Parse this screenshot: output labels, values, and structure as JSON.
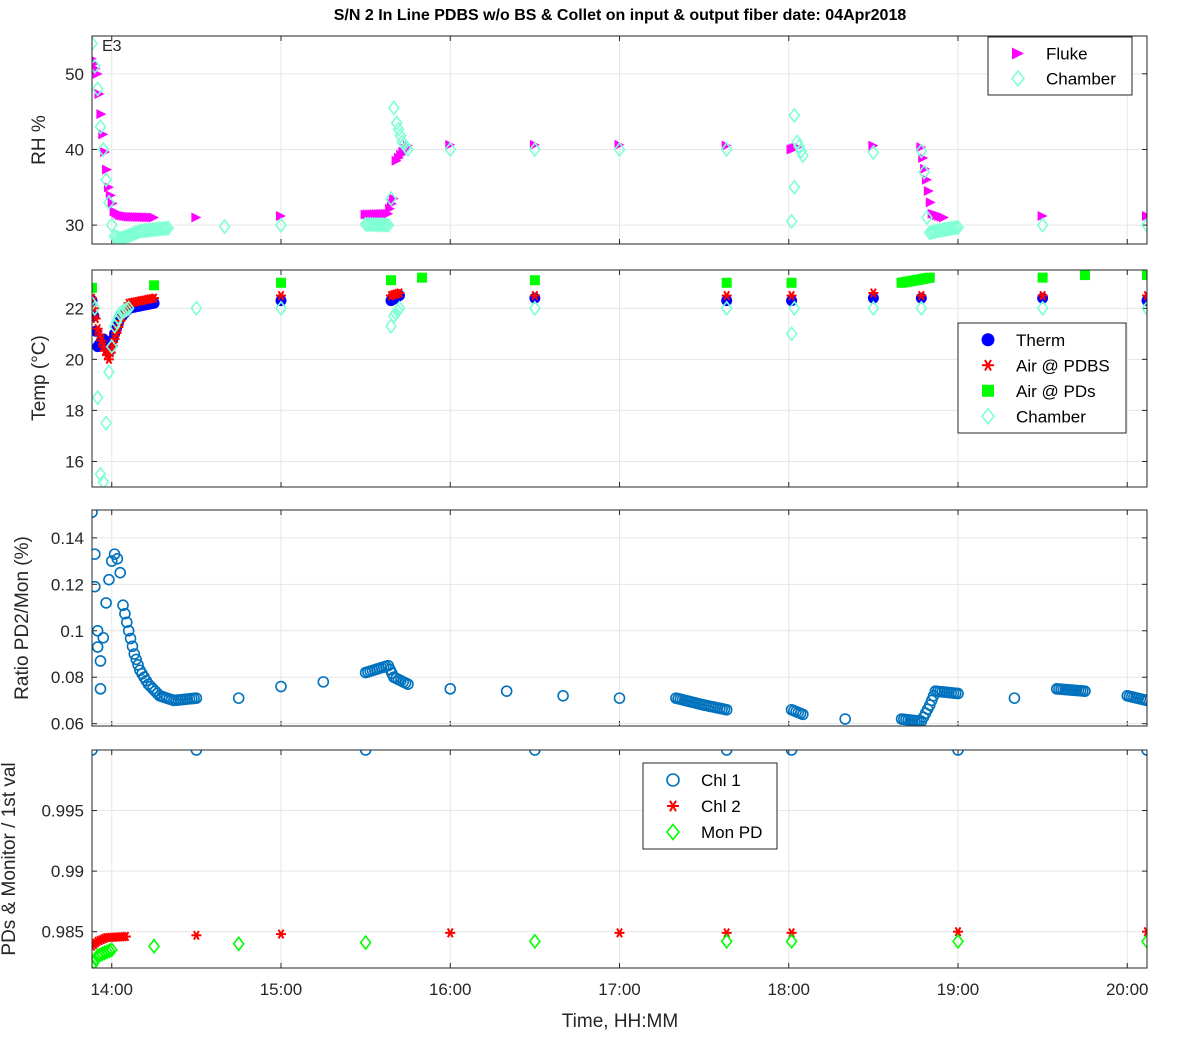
{
  "figure": {
    "title": "S/N 2 In Line PDBS w/o BS & Collet on input & output fiber date: 04Apr2018",
    "xlabel": "Time, HH:MM",
    "x_ticks": [
      "14:00",
      "15:00",
      "16:00",
      "17:00",
      "18:00",
      "19:00",
      "20:00"
    ],
    "colors": {
      "fluke": "#ff00ff",
      "chamber": "#7fffd4",
      "therm": "#0000ff",
      "air_pdbs": "#ff0000",
      "air_pds": "#00ff00",
      "ratio": "#0072bd",
      "chl1": "#0072bd",
      "chl2": "#ff0000",
      "mon_pd": "#00ff00"
    }
  },
  "chart_data": [
    {
      "type": "scatter",
      "ylabel": "RH %",
      "annotation": "E3",
      "xlim": [
        "13:53",
        "20:07"
      ],
      "ylim": [
        27.5,
        55
      ],
      "yticks": [
        "30",
        "40",
        "50"
      ],
      "grid": true,
      "legend_position": "top-right",
      "series": [
        {
          "name": "Fluke",
          "marker": "triangle-right",
          "color": "#ff00ff",
          "points": [
            [
              "13:53",
              52
            ],
            [
              "13:55",
              50
            ],
            [
              "13:57",
              42
            ],
            [
              "13:59",
              35
            ],
            [
              "14:01",
              31.8
            ],
            [
              "14:03",
              31.3
            ],
            [
              "14:06",
              31.1
            ],
            [
              "14:15",
              31.0
            ],
            [
              "14:30",
              31.0
            ],
            [
              "15:00",
              31.2
            ],
            [
              "15:30",
              31.4
            ],
            [
              "15:38",
              31.5
            ],
            [
              "15:40",
              33.5
            ],
            [
              "15:41",
              38.5
            ],
            [
              "15:45",
              40.5
            ],
            [
              "16:00",
              40.6
            ],
            [
              "16:30",
              40.6
            ],
            [
              "17:00",
              40.6
            ],
            [
              "17:38",
              40.5
            ],
            [
              "18:01",
              40.0
            ],
            [
              "18:03",
              40.3
            ],
            [
              "18:30",
              40.5
            ],
            [
              "18:47",
              40.3
            ],
            [
              "18:49",
              36.0
            ],
            [
              "18:51",
              31.5
            ],
            [
              "18:55",
              31.0
            ],
            [
              "19:30",
              31.2
            ],
            [
              "20:07",
              31.2
            ]
          ]
        },
        {
          "name": "Chamber",
          "marker": "diamond-open",
          "color": "#7fffd4",
          "points": [
            [
              "13:53",
              54
            ],
            [
              "13:54",
              51
            ],
            [
              "13:55",
              48
            ],
            [
              "13:56",
              43
            ],
            [
              "13:57",
              40
            ],
            [
              "13:58",
              36
            ],
            [
              "13:59",
              33
            ],
            [
              "14:00",
              30
            ],
            [
              "14:01",
              28.5
            ],
            [
              "14:03",
              28.2
            ],
            [
              "14:06",
              28.6
            ],
            [
              "14:10",
              29.2
            ],
            [
              "14:20",
              29.6
            ],
            [
              "14:40",
              29.8
            ],
            [
              "15:00",
              30.0
            ],
            [
              "15:30",
              30.1
            ],
            [
              "15:38",
              30.0
            ],
            [
              "15:39",
              33.5
            ],
            [
              "15:40",
              45.5
            ],
            [
              "15:41",
              43.5
            ],
            [
              "15:43",
              41.0
            ],
            [
              "15:45",
              40.0
            ],
            [
              "16:00",
              40.0
            ],
            [
              "16:30",
              40.0
            ],
            [
              "17:00",
              40.0
            ],
            [
              "17:38",
              40.0
            ],
            [
              "18:01",
              30.5
            ],
            [
              "18:02",
              35.0
            ],
            [
              "18:02",
              44.5
            ],
            [
              "18:03",
              41.0
            ],
            [
              "18:05",
              39.2
            ],
            [
              "18:30",
              39.6
            ],
            [
              "18:47",
              39.8
            ],
            [
              "18:48",
              37.0
            ],
            [
              "18:49",
              31.0
            ],
            [
              "18:50",
              29.0
            ],
            [
              "18:52",
              29.2
            ],
            [
              "19:00",
              29.7
            ],
            [
              "19:30",
              30.0
            ],
            [
              "20:07",
              30.0
            ]
          ]
        }
      ]
    },
    {
      "type": "scatter",
      "ylabel": "Temp (°C)",
      "xlim": [
        "13:53",
        "20:07"
      ],
      "ylim": [
        15,
        23.5
      ],
      "yticks": [
        "16",
        "18",
        "20",
        "22"
      ],
      "grid": true,
      "legend_position": "right",
      "series": [
        {
          "name": "Therm",
          "marker": "circle-filled",
          "color": "#0000ff",
          "points": [
            [
              "13:53",
              22.3
            ],
            [
              "13:55",
              20.5
            ],
            [
              "13:57",
              20.8
            ],
            [
              "13:59",
              20.3
            ],
            [
              "14:01",
              21.0
            ],
            [
              "14:03",
              21.6
            ],
            [
              "14:06",
              22.0
            ],
            [
              "14:15",
              22.2
            ],
            [
              "15:00",
              22.3
            ],
            [
              "15:39",
              22.3
            ],
            [
              "15:42",
              22.5
            ],
            [
              "16:30",
              22.4
            ],
            [
              "17:38",
              22.3
            ],
            [
              "18:01",
              22.3
            ],
            [
              "18:30",
              22.4
            ],
            [
              "18:47",
              22.4
            ],
            [
              "19:30",
              22.4
            ],
            [
              "20:07",
              22.3
            ]
          ]
        },
        {
          "name": "Air @ PDBS",
          "marker": "asterisk",
          "color": "#ff0000",
          "points": [
            [
              "13:53",
              22.4
            ],
            [
              "13:55",
              21.2
            ],
            [
              "13:57",
              20.5
            ],
            [
              "13:59",
              20.0
            ],
            [
              "14:01",
              20.8
            ],
            [
              "14:03",
              21.5
            ],
            [
              "14:06",
              22.2
            ],
            [
              "14:15",
              22.4
            ],
            [
              "15:00",
              22.5
            ],
            [
              "15:39",
              22.5
            ],
            [
              "15:42",
              22.6
            ],
            [
              "16:30",
              22.5
            ],
            [
              "17:38",
              22.5
            ],
            [
              "18:01",
              22.5
            ],
            [
              "18:30",
              22.6
            ],
            [
              "18:47",
              22.5
            ],
            [
              "19:30",
              22.5
            ],
            [
              "20:07",
              22.5
            ]
          ]
        },
        {
          "name": "Air @ PDs",
          "marker": "square-filled",
          "color": "#00ff00",
          "points": [
            [
              "13:53",
              22.8
            ],
            [
              "14:15",
              22.9
            ],
            [
              "15:00",
              23.0
            ],
            [
              "15:39",
              23.1
            ],
            [
              "15:50",
              23.2
            ],
            [
              "16:30",
              23.1
            ],
            [
              "17:38",
              23.0
            ],
            [
              "18:01",
              23.0
            ],
            [
              "18:40",
              23.0
            ],
            [
              "18:50",
              23.2
            ],
            [
              "19:30",
              23.2
            ],
            [
              "19:45",
              23.3
            ],
            [
              "20:07",
              23.3
            ]
          ]
        },
        {
          "name": "Chamber",
          "marker": "diamond-open",
          "color": "#7fffd4",
          "points": [
            [
              "13:53",
              22.2
            ],
            [
              "13:54",
              22.0
            ],
            [
              "13:55",
              18.5
            ],
            [
              "13:56",
              15.5
            ],
            [
              "13:57",
              15.2
            ],
            [
              "13:58",
              17.5
            ],
            [
              "13:59",
              19.5
            ],
            [
              "14:00",
              20.5
            ],
            [
              "14:01",
              21.3
            ],
            [
              "14:03",
              21.8
            ],
            [
              "14:06",
              22.0
            ],
            [
              "14:30",
              22.0
            ],
            [
              "15:00",
              22.0
            ],
            [
              "15:39",
              21.3
            ],
            [
              "15:40",
              21.7
            ],
            [
              "15:42",
              22.0
            ],
            [
              "16:30",
              22.0
            ],
            [
              "17:38",
              22.0
            ],
            [
              "18:01",
              21.0
            ],
            [
              "18:02",
              22.0
            ],
            [
              "18:30",
              22.0
            ],
            [
              "18:47",
              22.0
            ],
            [
              "19:30",
              22.0
            ],
            [
              "20:07",
              22.0
            ]
          ]
        }
      ]
    },
    {
      "type": "scatter",
      "ylabel": "Ratio PD2/Mon (%)",
      "xlim": [
        "13:53",
        "20:07"
      ],
      "ylim": [
        0.059,
        0.152
      ],
      "yticks": [
        "0.06",
        "0.08",
        "0.1",
        "0.12",
        "0.14"
      ],
      "grid": true,
      "series": [
        {
          "name": "",
          "marker": "circle-open",
          "color": "#0072bd",
          "points": [
            [
              "13:53",
              0.151
            ],
            [
              "13:54",
              0.133
            ],
            [
              "13:54",
              0.119
            ],
            [
              "13:55",
              0.1
            ],
            [
              "13:55",
              0.093
            ],
            [
              "13:56",
              0.087
            ],
            [
              "13:56",
              0.075
            ],
            [
              "13:57",
              0.097
            ],
            [
              "13:58",
              0.112
            ],
            [
              "13:59",
              0.122
            ],
            [
              "14:00",
              0.13
            ],
            [
              "14:01",
              0.133
            ],
            [
              "14:02",
              0.131
            ],
            [
              "14:03",
              0.125
            ],
            [
              "14:04",
              0.111
            ],
            [
              "14:06",
              0.1
            ],
            [
              "14:08",
              0.09
            ],
            [
              "14:10",
              0.083
            ],
            [
              "14:13",
              0.077
            ],
            [
              "14:17",
              0.072
            ],
            [
              "14:22",
              0.07
            ],
            [
              "14:30",
              0.071
            ],
            [
              "14:45",
              0.071
            ],
            [
              "15:00",
              0.076
            ],
            [
              "15:15",
              0.078
            ],
            [
              "15:30",
              0.082
            ],
            [
              "15:38",
              0.085
            ],
            [
              "15:40",
              0.08
            ],
            [
              "15:45",
              0.077
            ],
            [
              "16:00",
              0.075
            ],
            [
              "16:20",
              0.074
            ],
            [
              "16:40",
              0.072
            ],
            [
              "17:00",
              0.071
            ],
            [
              "17:20",
              0.071
            ],
            [
              "17:30",
              0.068
            ],
            [
              "17:38",
              0.066
            ],
            [
              "18:01",
              0.066
            ],
            [
              "18:05",
              0.064
            ],
            [
              "18:20",
              0.062
            ],
            [
              "18:40",
              0.062
            ],
            [
              "18:47",
              0.061
            ],
            [
              "18:50",
              0.068
            ],
            [
              "18:52",
              0.074
            ],
            [
              "19:00",
              0.073
            ],
            [
              "19:20",
              0.071
            ],
            [
              "19:35",
              0.075
            ],
            [
              "19:45",
              0.074
            ],
            [
              "20:00",
              0.072
            ],
            [
              "20:07",
              0.07
            ]
          ]
        }
      ]
    },
    {
      "type": "scatter",
      "ylabel": "PDs & Monitor / 1st val",
      "xlim": [
        "13:53",
        "20:07"
      ],
      "ylim": [
        0.982,
        1.0
      ],
      "yticks": [
        "0.985",
        "0.99",
        "0.995"
      ],
      "grid": true,
      "legend_position": "top-center",
      "series": [
        {
          "name": "Chl 1",
          "marker": "circle-open",
          "color": "#0072bd",
          "points": [
            [
              "13:53",
              1.0
            ],
            [
              "14:30",
              1.0
            ],
            [
              "15:30",
              1.0
            ],
            [
              "16:30",
              1.0
            ],
            [
              "17:38",
              1.0
            ],
            [
              "18:01",
              1.0
            ],
            [
              "19:00",
              1.0
            ],
            [
              "20:07",
              1.0
            ]
          ]
        },
        {
          "name": "Chl 2",
          "marker": "asterisk",
          "color": "#ff0000",
          "points": [
            [
              "13:53",
              0.9838
            ],
            [
              "13:55",
              0.9842
            ],
            [
              "13:58",
              0.9845
            ],
            [
              "14:05",
              0.9846
            ],
            [
              "14:30",
              0.9847
            ],
            [
              "15:00",
              0.9848
            ],
            [
              "16:00",
              0.9849
            ],
            [
              "17:00",
              0.9849
            ],
            [
              "17:38",
              0.9849
            ],
            [
              "18:01",
              0.9849
            ],
            [
              "19:00",
              0.985
            ],
            [
              "20:07",
              0.985
            ]
          ]
        },
        {
          "name": "Mon PD",
          "marker": "diamond-open",
          "color": "#00ff00",
          "points": [
            [
              "13:53",
              0.9822
            ],
            [
              "13:55",
              0.983
            ],
            [
              "14:00",
              0.9835
            ],
            [
              "14:15",
              0.9838
            ],
            [
              "14:45",
              0.984
            ],
            [
              "15:30",
              0.9841
            ],
            [
              "16:30",
              0.9842
            ],
            [
              "17:38",
              0.9842
            ],
            [
              "18:01",
              0.9842
            ],
            [
              "19:00",
              0.9842
            ],
            [
              "20:07",
              0.9842
            ]
          ]
        }
      ]
    }
  ]
}
